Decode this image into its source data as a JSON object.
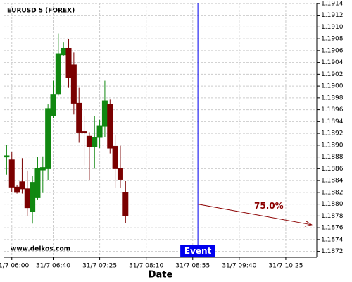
{
  "chart_data": {
    "type": "candlestick",
    "title": "EURUSD 5 (FOREX)",
    "x_label": "Date",
    "watermark": "www.delkos.com",
    "x": [
      "31/7 05:55",
      "31/7 06:00",
      "31/7 06:05",
      "31/7 06:10",
      "31/7 06:15",
      "31/7 06:20",
      "31/7 06:25",
      "31/7 06:30",
      "31/7 06:35",
      "31/7 06:40",
      "31/7 06:45",
      "31/7 06:50",
      "31/7 06:55",
      "31/7 07:00",
      "31/7 07:05",
      "31/7 07:10",
      "31/7 07:15",
      "31/7 07:20",
      "31/7 07:25",
      "31/7 07:30",
      "31/7 07:35",
      "31/7 07:40",
      "31/7 07:45",
      "31/7 07:50"
    ],
    "open": [
      1.1888,
      1.18875,
      1.18829,
      1.18838,
      1.18826,
      1.18788,
      1.18811,
      1.18858,
      1.1886,
      1.1895,
      1.18986,
      1.19053,
      1.19064,
      1.19036,
      1.18971,
      1.18923,
      1.18915,
      1.18898,
      1.18913,
      1.18932,
      1.18969,
      1.18898,
      1.1886,
      1.1882
    ],
    "high": [
      1.18901,
      1.18889,
      1.18833,
      1.18878,
      1.18857,
      1.18848,
      1.1888,
      1.18881,
      1.18969,
      1.19009,
      1.19089,
      1.19074,
      1.1908,
      1.19057,
      1.18997,
      1.18949,
      1.18922,
      1.18949,
      1.18943,
      1.19009,
      1.18977,
      1.18917,
      1.18899,
      1.18839
    ],
    "low": [
      1.1885,
      1.1882,
      1.18818,
      1.18818,
      1.1878,
      1.18767,
      1.18808,
      1.18819,
      1.18841,
      1.18946,
      1.18984,
      1.19051,
      1.18997,
      1.18952,
      1.18904,
      1.18866,
      1.18841,
      1.1886,
      1.18895,
      1.18913,
      1.18886,
      1.18827,
      1.18827,
      1.18768
    ],
    "close": [
      1.18882,
      1.18829,
      1.1882,
      1.18826,
      1.18794,
      1.18837,
      1.1886,
      1.18862,
      1.18962,
      1.18985,
      1.19055,
      1.19064,
      1.19014,
      1.18971,
      1.18922,
      1.18922,
      1.18898,
      1.18913,
      1.18932,
      1.18975,
      1.18895,
      1.1886,
      1.18842,
      1.1878
    ],
    "up_color": "#118811",
    "down_color": "#7a0000",
    "xlim": [
      "31/7 05:52",
      "31/7 10:55"
    ],
    "xticks": [
      "31/7 06:00",
      "31/7 06:40",
      "31/7 07:25",
      "31/7 08:10",
      "31/7 08:55",
      "31/7 09:40",
      "31/7 10:25"
    ],
    "ylim": [
      1.1871,
      1.19141
    ],
    "yticks": [
      1.1872,
      1.1874,
      1.1876,
      1.1878,
      {
        "value": 1.188,
        "label": "1.1880"
      },
      1.1882,
      1.1884,
      1.1886,
      1.1888,
      {
        "value": 1.189,
        "label": "1.1890"
      },
      1.1892,
      1.1894,
      1.1896,
      1.1898,
      {
        "value": 1.19,
        "label": "1.1900"
      },
      1.1902,
      1.1904,
      1.1906,
      1.1908,
      {
        "value": 1.191,
        "label": "1.1910"
      },
      1.1912,
      1.1914
    ],
    "grid": true,
    "event": {
      "label": "Event",
      "x": "31/7 09:00",
      "color": "#0000ee"
    },
    "projection": {
      "label": "75.0%",
      "x": [
        "31/7 09:00",
        "31/7 10:50"
      ],
      "values": [
        1.188,
        1.18765
      ],
      "color": "#8b0000"
    }
  }
}
